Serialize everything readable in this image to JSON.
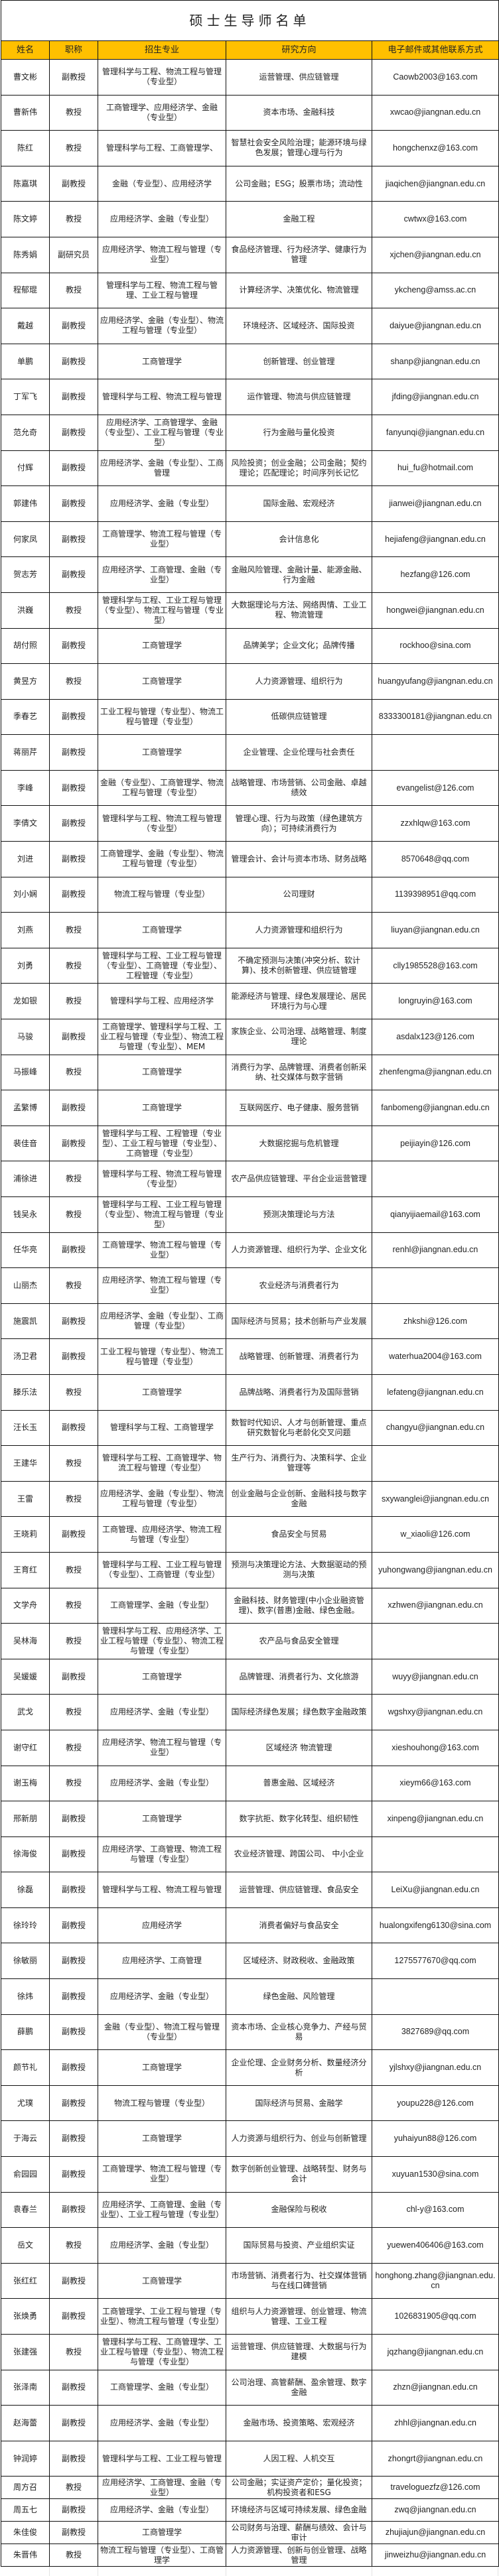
{
  "title": "硕士生导师名单",
  "headers": [
    "姓名",
    "职称",
    "招生专业",
    "研究方向",
    "电子邮件或其他联系方式"
  ],
  "accent_color": "#FFC000",
  "rows": [
    [
      "曹文彬",
      "副教授",
      "管理科学与工程、物流工程与管理（专业型）",
      "运营管理、供应链管理",
      "Caowb2003@163.com"
    ],
    [
      "曹新伟",
      "教授",
      "工商管理学、应用经济学、金融（专业型）",
      "资本市场、金融科技",
      "xwcao@jiangnan.edu.cn"
    ],
    [
      "陈红",
      "教授",
      "管理科学与工程、工商管理学、",
      "智慧社会安全风险治理；能源环境与绿色发展；管理心理与行为",
      "hongchenxz@163.com"
    ],
    [
      "陈嘉琪",
      "副教授",
      "金融（专业型）、应用经济学",
      "公司金融；ESG；股票市场；流动性",
      "jiaqichen@jiangnan.edu.cn"
    ],
    [
      "陈文婷",
      "教授",
      "应用经济学、金融（专业型）",
      "金融工程",
      "cwtwx@163.com"
    ],
    [
      "陈秀娟",
      "副研究员",
      "应用经济学、物流工程与管理（专业型）",
      "食品经济管理、行为经济学、健康行为管理",
      "xjchen@jiangnan.edu.cn"
    ],
    [
      "程郁琨",
      "教授",
      "管理科学与工程、物流工程与管理、工业工程与管理",
      "计算经济学、决策优化、物流管理",
      "ykcheng@amss.ac.cn"
    ],
    [
      "戴越",
      "副教授",
      "应用经济学、金融（专业型）、物流工程与管理（专业型）",
      "环境经济、区域经济、国际投资",
      "daiyue@jiangnan.edu.cn"
    ],
    [
      "单鹏",
      "副教授",
      "工商管理学",
      "创新管理、创业管理",
      "shanp@jiangnan.edu.cn"
    ],
    [
      "丁军飞",
      "副教授",
      "管理科学与工程、物流工程与管理",
      "运作管理、物流与供应链管理",
      "jfding@jiangnan.edu.cn"
    ],
    [
      "范允奇",
      "副教授",
      "应用经济学、工商管理学、金融（专业型）、工业工程与管理（专业型）",
      "行为金融与量化投资",
      "fanyunqi@jiangnan.edu.cn"
    ],
    [
      "付辉",
      "副教授",
      "应用经济学、金融（专业型）、工商管理",
      "风险投资；创业金融；公司金融；契约理论；匹配理论；时间序列长记忆",
      "hui_fu@hotmail.com"
    ],
    [
      "郭建伟",
      "副教授",
      "应用经济学、金融（专业型）",
      "国际金融、宏观经济",
      "jianwei@jiangnan.edu.cn"
    ],
    [
      "何家凤",
      "副教授",
      "工商管理学、物流工程与管理（专业型）",
      "会计信息化",
      "hejiafeng@jiangnan.edu.cn"
    ],
    [
      "贺志芳",
      "副教授",
      "应用经济学、工商管理、金融（专业型）",
      "金融风险管理、金融计量、能源金融、行为金融",
      "hezfang@126.com"
    ],
    [
      "洪巍",
      "教授",
      "管理科学与工程、工业工程与管理（专业型）、物流工程与管理（专业型）",
      "大数据理论与方法、网络舆情、工业工程、物流管理",
      "hongwei@jiangnan.edu.cn"
    ],
    [
      "胡付照",
      "副教授",
      "工商管理学",
      "品牌美学；企业文化；品牌传播",
      "rockhoo@sina.com"
    ],
    [
      "黄昱方",
      "教授",
      "工商管理学",
      "人力资源管理、组织行为",
      "huangyufang@jiangnan.edu.cn"
    ],
    [
      "季春艺",
      "副教授",
      "工业工程与管理（专业型）、物流工程与管理（专业型）",
      "低碳供应链管理",
      "8333300181@jiangnan.edu.cn"
    ],
    [
      "蒋丽芹",
      "副教授",
      "工商管理学",
      "企业管理、企业伦理与社会责任",
      ""
    ],
    [
      "李峰",
      "副教授",
      "金融（专业型）、工商管理学、物流工程与管理（专业型）",
      "战略管理、市场营销、公司金融、卓越绩效",
      "evangelist@126.com"
    ],
    [
      "李倩文",
      "副教授",
      "管理科学与工程、物流工程与管理（专业型）",
      "管理心理、行为与政策（绿色建筑方向）；可持续消费行为",
      "zzxhlqw@163.com"
    ],
    [
      "刘进",
      "副教授",
      "工商管理学、金融（专业型）、物流工程与管理（专业型）",
      "管理会计、会计与资本市场、财务战略",
      "8570648@qq.com"
    ],
    [
      "刘小娴",
      "副教授",
      "物流工程与管理（专业型）",
      "公司理财",
      "1139398951@qq.com"
    ],
    [
      "刘燕",
      "教授",
      "工商管理学",
      "人力资源管理和组织行为",
      "liuyan@jiangnan.edu.cn"
    ],
    [
      "刘勇",
      "教授",
      "管理科学与工程、工业工程与管理（专业型）、工商管理（专业型）、工程管理（专业型）",
      "不确定预测与决策(冲突分析、软计算)、技术创新管理、供应链管理",
      "clly1985528@163.com"
    ],
    [
      "龙如银",
      "教授",
      "管理科学与工程、应用经济学",
      "能源经济与管理、绿色发展理论、居民环境行为与心理",
      "longruyin@163.com"
    ],
    [
      "马骏",
      "副教授",
      "工商管理学、管理科学与工程、工业工程与管理（专业型）、物流工程与管理（专业型）、MEM",
      "家族企业、公司治理、战略管理、制度理论",
      "asdalx123@126.com"
    ],
    [
      "马振峰",
      "教授",
      "工商管理学",
      "消费行为学、品牌管理、消费者创新采纳、社交媒体与数字营销",
      "zhenfengma@jiangnan.edu.cn"
    ],
    [
      "孟繁博",
      "副教授",
      "工商管理学",
      "互联网医疗、电子健康、服务营销",
      "fanbomeng@jiangnan.edu.cn"
    ],
    [
      "裴佳音",
      "副教授",
      "管理科学与工程、工程管理（专业型）、工业工程与管理（专业型）、工商管理（专业型）",
      "大数据挖掘与危机管理",
      "peijiayin@126.com"
    ],
    [
      "浦徐进",
      "教授",
      "管理科学与工程、物流工程与管理（专业型）",
      "农产品供应链管理、平台企业运营管理",
      ""
    ],
    [
      "钱吴永",
      "教授",
      "管理科学与工程、工业工程与管理（专业型）、物流工程与管理（专业型）",
      "预测决策理论与方法",
      "qianyijiaemail@163.com"
    ],
    [
      "任华亮",
      "副教授",
      "工商管理学、物流工程与管理（专业型）",
      "人力资源管理、组织行为学、企业文化",
      "renhl@jiangnan.edu.cn"
    ],
    [
      "山丽杰",
      "教授",
      "应用经济学、物流工程与管理（专业型）",
      "农业经济与消费者行为",
      ""
    ],
    [
      "施震凯",
      "副教授",
      "应用经济学、金融（专业型）、工商管理（专业型）",
      "国际经济与贸易；技术创新与产业发展",
      "zhkshi@126.com"
    ],
    [
      "汤卫君",
      "副教授",
      "工业工程与管理（专业型）、物流工程与管理（专业型）",
      "战略管理、创新管理、消费者行为",
      "waterhua2004@163.com"
    ],
    [
      "滕乐法",
      "教授",
      "工商管理学",
      "品牌战略、消费者行为及国际营销",
      "lefateng@jiangnan.edu.cn"
    ],
    [
      "汪长玉",
      "副教授",
      "管理科学与工程、工商管理学",
      "数智时代知识、人才与创新管理、重点研究数智化与老龄化交叉问题",
      "changyu@jiangnan.edu.cn"
    ],
    [
      "王建华",
      "教授",
      "管理科学与工程、工商管理学、物流工程与管理（专业型）",
      "生产行为、消费行为、决策科学、企业管理等",
      ""
    ],
    [
      "王雷",
      "教授",
      "应用经济学、金融（专业型）、物流工程与管理（专业型）",
      "创业金融与企业创新、金融科技与数字金融",
      "sxywanglei@jiangnan.edu.cn"
    ],
    [
      "王晓莉",
      "副教授",
      "工商管理、应用经济学、物流工程与管理（专业型）",
      "食品安全与贸易",
      "w_xiaoli@126.com"
    ],
    [
      "王育红",
      "教授",
      "管理科学与工程、工业工程与管理（专业型）、工商管理（专业型）",
      "预测与决策理论方法、大数据驱动的预测与决策",
      "yuhongwang@jiangnan.edu.cn"
    ],
    [
      "文学舟",
      "教授",
      "工商管理学、金融（专业型）",
      "金融科技、财务管理(中小企业融资管理)、数字(普惠)金融、绿色金融。",
      "xzhwen@jiangnan.edu.cn"
    ],
    [
      "吴林海",
      "教授",
      "管理科学与工程、应用经济学、工业工程与管理（专业型）、物流工程与管理（专业型）",
      "农产品与食品安全管理",
      ""
    ],
    [
      "吴媛媛",
      "副教授",
      "工商管理学",
      "品牌管理、消费者行为、文化旅游",
      "wuyy@jiangnan.edu.cn"
    ],
    [
      "武戈",
      "教授",
      "应用经济学、金融（专业型）",
      "国际经济绿色发展；绿色数字金融政策",
      "wgshxy@jiangnan.edu.cn"
    ],
    [
      "谢守红",
      "教授",
      "应用经济学、物流工程与管理（专业型）",
      "区域经济 物流管理",
      "xieshouhong@163.com"
    ],
    [
      "谢玉梅",
      "教授",
      "应用经济学、金融（专业型）",
      "普惠金融、区域经济",
      "xieym66@163.com"
    ],
    [
      "邢新朋",
      "副教授",
      "工商管理学",
      "数字抗拒、数字化转型、组织韧性",
      "xinpeng@jiangnan.edu.cn"
    ],
    [
      "徐海俊",
      "副教授",
      "应用经济学、工商管理、物流工程与管理（专业型）",
      "农业经济管理、跨国公司、 中小企业",
      ""
    ],
    [
      "徐磊",
      "副教授",
      "管理科学与工程、物流工程与管理",
      "运营管理、供应链管理、食品安全",
      "LeiXu@jiangnan.edu.cn"
    ],
    [
      "徐玲玲",
      "副教授",
      "应用经济学",
      "消费者偏好与食品安全",
      "hualongxifeng6130@sina.com"
    ],
    [
      "徐敏丽",
      "副教授",
      "应用经济学、工商管理",
      "区域经济、财政税收、金融政策",
      "1275577670@qq.com"
    ],
    [
      "徐炜",
      "副教授",
      "应用经济学、金融（专业型）",
      "绿色金融、风险管理",
      ""
    ],
    [
      "薛鹏",
      "副教授",
      "金融（专业型）、物流工程与管理（专业型）",
      "资本市场、企业核心竞争力、产经与贸易",
      "3827689@qq.com"
    ],
    [
      "颜节礼",
      "副教授",
      "工商管理学",
      "企业伦理、企业财务分析、数量经济分析",
      "yjlshxy@jiangnan.edu.cn"
    ],
    [
      "尤璞",
      "副教授",
      "物流工程与管理（专业型）",
      "国际经济与贸易、金融学",
      "youpu228@126.com"
    ],
    [
      "于海云",
      "副教授",
      "工商管理学",
      "人力资源与组织行为、创业与创新管理",
      "yuhaiyun88@126.com"
    ],
    [
      "俞园园",
      "副教授",
      "工商管理学、物流工程与管理（专业型）",
      "数字创新创业管理、战略转型、财务与会计",
      "xuyuan1530@sina.com"
    ],
    [
      "袁春兰",
      "副教授",
      "应用经济学、工商管理、金融（专业型）、工业工程与管理（专业型）",
      "金融保险与税收",
      "chl-y@163.com"
    ],
    [
      "岳文",
      "教授",
      "应用经济学、金融（专业型）",
      "国际贸易与投资、产业组织实证",
      "yuewen406406@163.com"
    ],
    [
      "张红红",
      "副教授",
      "工商管理学",
      "市场营销、消费者行为、社交媒体营销与在线口碑营销",
      "honghong.zhang@jiangnan.edu.cn"
    ],
    [
      "张焕勇",
      "副教授",
      "工商管理学、工业工程与管理（专业型）、物流工程与管理（专业型）",
      "组织与人力资源管理、创业管理、物流管理、工业工程",
      "1026831905@qq.com"
    ],
    [
      "张建强",
      "教授",
      "管理科学与工程、工商管理学、工业工程与管理（专业型）、物流工程与管理（专业型）",
      "运营管理、供应链管理、大数据与行为建模",
      "jqzhang@jiangnan.edu.cn"
    ],
    [
      "张泽南",
      "副教授",
      "工商管理学、金融（专业型）",
      "公司治理、高管薪酬、盈余管理、数字金融",
      "zhzn@jiangnan.edu.cn"
    ],
    [
      "赵海蕾",
      "副教授",
      "应用经济学、金融（专业型）",
      "金融市场、投资策略、宏观经济",
      "zhhl@jiangnan.edu.cn"
    ],
    [
      "钟润婷",
      "副教授",
      "管理科学与工程、工业工程与管理",
      "人因工程、人机交互",
      "zhongrt@jiangnan.edu.cn"
    ],
    [
      "周方召",
      "教授",
      "应用经济学、工商管理、金融（专业型）",
      "公司金融；实证资产定价；量化投资；机构投资者和ESG",
      "traveloguezfz@126.com"
    ],
    [
      "周五七",
      "副教授",
      "应用经济学、金融（专业型）",
      "环境经济与区域可持续发展、绿色金融",
      "zwq@jiangnan.edu.cn"
    ],
    [
      "朱佳俊",
      "副教授",
      "工商管理学",
      "公司财务与治理、薪酬与绩效、会计与审计",
      "zhujiajun@jiangnan.edu.cn"
    ],
    [
      "朱晋伟",
      "教授",
      "物流工程与管理（专业型）、工商管理学",
      "人力资源管理、创新与创业管理、战略管理",
      "jinweizhu@jiangnan.edu.cn"
    ]
  ]
}
